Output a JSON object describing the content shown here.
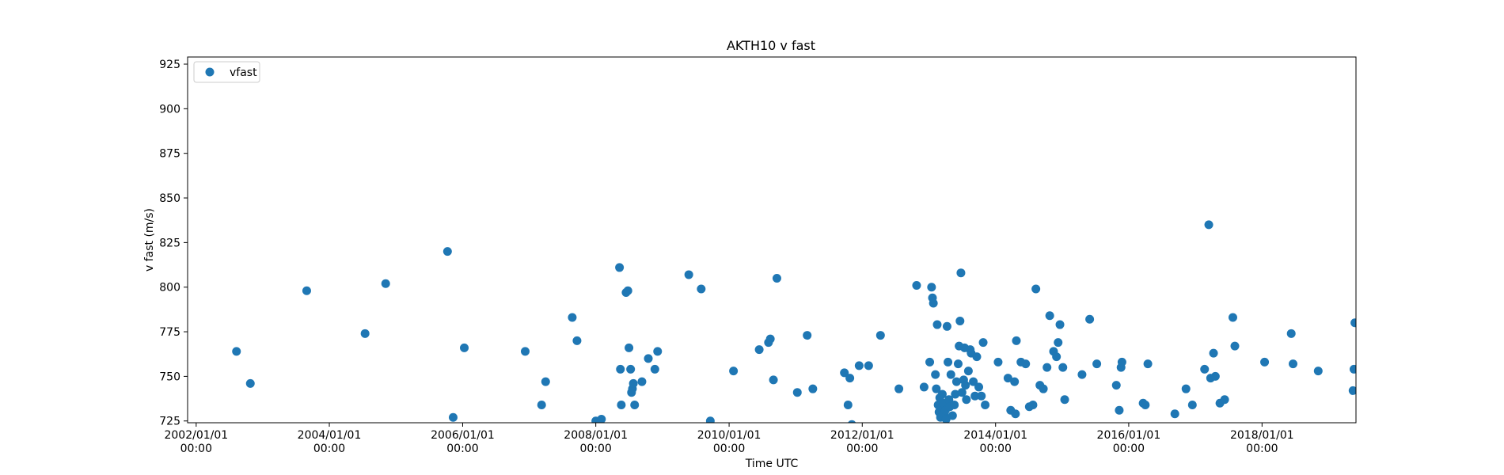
{
  "chart_data": {
    "type": "scatter",
    "title": "AKTH10 v fast",
    "xlabel": "Time UTC",
    "ylabel": "v fast (m/s)",
    "grid": false,
    "legend_position": "top-left",
    "xlim": [
      "2001-11-15",
      "2019-05-31"
    ],
    "ylim": [
      724,
      929
    ],
    "x_ticks": [
      {
        "date": "2002-01-01",
        "line1": "2002/01/01",
        "line2": "00:00"
      },
      {
        "date": "2004-01-01",
        "line1": "2004/01/01",
        "line2": "00:00"
      },
      {
        "date": "2006-01-01",
        "line1": "2006/01/01",
        "line2": "00:00"
      },
      {
        "date": "2008-01-01",
        "line1": "2008/01/01",
        "line2": "00:00"
      },
      {
        "date": "2010-01-01",
        "line1": "2010/01/01",
        "line2": "00:00"
      },
      {
        "date": "2012-01-01",
        "line1": "2012/01/01",
        "line2": "00:00"
      },
      {
        "date": "2014-01-01",
        "line1": "2014/01/01",
        "line2": "00:00"
      },
      {
        "date": "2016-01-01",
        "line1": "2016/01/01",
        "line2": "00:00"
      },
      {
        "date": "2018-01-01",
        "line1": "2018/01/01",
        "line2": "00:00"
      }
    ],
    "y_ticks": [
      725,
      750,
      775,
      800,
      825,
      850,
      875,
      900,
      925
    ],
    "series": [
      {
        "name": "vfast",
        "color": "#1f77b4",
        "marker": "circle",
        "points": [
          {
            "x": "2002-08-10",
            "y": 764
          },
          {
            "x": "2002-10-25",
            "y": 746
          },
          {
            "x": "2003-08-30",
            "y": 798
          },
          {
            "x": "2004-07-15",
            "y": 774
          },
          {
            "x": "2004-11-05",
            "y": 802
          },
          {
            "x": "2005-10-10",
            "y": 820
          },
          {
            "x": "2005-11-10",
            "y": 727
          },
          {
            "x": "2006-01-10",
            "y": 766
          },
          {
            "x": "2006-12-10",
            "y": 764
          },
          {
            "x": "2007-03-10",
            "y": 734
          },
          {
            "x": "2007-04-01",
            "y": 747
          },
          {
            "x": "2007-08-25",
            "y": 783
          },
          {
            "x": "2007-09-20",
            "y": 770
          },
          {
            "x": "2008-01-01",
            "y": 725
          },
          {
            "x": "2008-02-01",
            "y": 726
          },
          {
            "x": "2008-05-10",
            "y": 811
          },
          {
            "x": "2008-05-15",
            "y": 754
          },
          {
            "x": "2008-05-20",
            "y": 734
          },
          {
            "x": "2008-06-15",
            "y": 797
          },
          {
            "x": "2008-06-25",
            "y": 798
          },
          {
            "x": "2008-07-01",
            "y": 766
          },
          {
            "x": "2008-07-10",
            "y": 754
          },
          {
            "x": "2008-07-15",
            "y": 741
          },
          {
            "x": "2008-07-20",
            "y": 743
          },
          {
            "x": "2008-07-25",
            "y": 746
          },
          {
            "x": "2008-08-01",
            "y": 734
          },
          {
            "x": "2008-09-10",
            "y": 747
          },
          {
            "x": "2008-10-15",
            "y": 760
          },
          {
            "x": "2008-11-20",
            "y": 754
          },
          {
            "x": "2008-12-05",
            "y": 764
          },
          {
            "x": "2009-05-25",
            "y": 807
          },
          {
            "x": "2009-08-01",
            "y": 799
          },
          {
            "x": "2009-09-20",
            "y": 725
          },
          {
            "x": "2010-01-25",
            "y": 753
          },
          {
            "x": "2010-06-15",
            "y": 765
          },
          {
            "x": "2010-08-05",
            "y": 769
          },
          {
            "x": "2010-08-15",
            "y": 771
          },
          {
            "x": "2010-09-01",
            "y": 748
          },
          {
            "x": "2010-09-20",
            "y": 805
          },
          {
            "x": "2011-01-10",
            "y": 741
          },
          {
            "x": "2011-03-05",
            "y": 773
          },
          {
            "x": "2011-04-05",
            "y": 743
          },
          {
            "x": "2011-09-25",
            "y": 752
          },
          {
            "x": "2011-10-15",
            "y": 734
          },
          {
            "x": "2011-10-25",
            "y": 749
          },
          {
            "x": "2011-11-05",
            "y": 723
          },
          {
            "x": "2011-12-15",
            "y": 756
          },
          {
            "x": "2012-02-05",
            "y": 756
          },
          {
            "x": "2012-04-10",
            "y": 773
          },
          {
            "x": "2012-07-20",
            "y": 743
          },
          {
            "x": "2012-10-25",
            "y": 801
          },
          {
            "x": "2012-12-05",
            "y": 744
          },
          {
            "x": "2013-01-05",
            "y": 758
          },
          {
            "x": "2013-01-15",
            "y": 800
          },
          {
            "x": "2013-01-20",
            "y": 794
          },
          {
            "x": "2013-01-25",
            "y": 791
          },
          {
            "x": "2013-02-05",
            "y": 751
          },
          {
            "x": "2013-02-10",
            "y": 743
          },
          {
            "x": "2013-02-15",
            "y": 779
          },
          {
            "x": "2013-02-20",
            "y": 734
          },
          {
            "x": "2013-02-25",
            "y": 730
          },
          {
            "x": "2013-03-01",
            "y": 738
          },
          {
            "x": "2013-03-05",
            "y": 727
          },
          {
            "x": "2013-03-10",
            "y": 732
          },
          {
            "x": "2013-03-15",
            "y": 740
          },
          {
            "x": "2013-03-20",
            "y": 735
          },
          {
            "x": "2013-03-25",
            "y": 729
          },
          {
            "x": "2013-04-01",
            "y": 731
          },
          {
            "x": "2013-04-05",
            "y": 726
          },
          {
            "x": "2013-04-10",
            "y": 778
          },
          {
            "x": "2013-04-15",
            "y": 758
          },
          {
            "x": "2013-04-20",
            "y": 737
          },
          {
            "x": "2013-04-25",
            "y": 733
          },
          {
            "x": "2013-05-01",
            "y": 751
          },
          {
            "x": "2013-05-10",
            "y": 728
          },
          {
            "x": "2013-05-20",
            "y": 734
          },
          {
            "x": "2013-05-25",
            "y": 740
          },
          {
            "x": "2013-06-01",
            "y": 747
          },
          {
            "x": "2013-06-10",
            "y": 757
          },
          {
            "x": "2013-06-15",
            "y": 767
          },
          {
            "x": "2013-06-20",
            "y": 781
          },
          {
            "x": "2013-06-25",
            "y": 808
          },
          {
            "x": "2013-07-01",
            "y": 741
          },
          {
            "x": "2013-07-10",
            "y": 748
          },
          {
            "x": "2013-07-15",
            "y": 766
          },
          {
            "x": "2013-07-20",
            "y": 745
          },
          {
            "x": "2013-07-25",
            "y": 737
          },
          {
            "x": "2013-08-05",
            "y": 753
          },
          {
            "x": "2013-08-15",
            "y": 765
          },
          {
            "x": "2013-08-20",
            "y": 763
          },
          {
            "x": "2013-09-01",
            "y": 747
          },
          {
            "x": "2013-09-10",
            "y": 739
          },
          {
            "x": "2013-09-20",
            "y": 761
          },
          {
            "x": "2013-10-01",
            "y": 744
          },
          {
            "x": "2013-10-15",
            "y": 739
          },
          {
            "x": "2013-10-25",
            "y": 769
          },
          {
            "x": "2013-11-05",
            "y": 734
          },
          {
            "x": "2014-01-15",
            "y": 758
          },
          {
            "x": "2014-03-10",
            "y": 749
          },
          {
            "x": "2014-03-25",
            "y": 731
          },
          {
            "x": "2014-04-15",
            "y": 747
          },
          {
            "x": "2014-04-20",
            "y": 729
          },
          {
            "x": "2014-04-25",
            "y": 770
          },
          {
            "x": "2014-05-20",
            "y": 758
          },
          {
            "x": "2014-06-15",
            "y": 757
          },
          {
            "x": "2014-07-05",
            "y": 733
          },
          {
            "x": "2014-07-25",
            "y": 734
          },
          {
            "x": "2014-08-10",
            "y": 799
          },
          {
            "x": "2014-09-01",
            "y": 745
          },
          {
            "x": "2014-09-20",
            "y": 743
          },
          {
            "x": "2014-10-10",
            "y": 755
          },
          {
            "x": "2014-10-25",
            "y": 784
          },
          {
            "x": "2014-11-15",
            "y": 764
          },
          {
            "x": "2014-12-01",
            "y": 761
          },
          {
            "x": "2014-12-10",
            "y": 769
          },
          {
            "x": "2014-12-20",
            "y": 779
          },
          {
            "x": "2015-01-05",
            "y": 755
          },
          {
            "x": "2015-01-15",
            "y": 737
          },
          {
            "x": "2015-04-20",
            "y": 751
          },
          {
            "x": "2015-06-01",
            "y": 782
          },
          {
            "x": "2015-07-10",
            "y": 757
          },
          {
            "x": "2015-10-25",
            "y": 745
          },
          {
            "x": "2015-11-10",
            "y": 731
          },
          {
            "x": "2015-11-20",
            "y": 755
          },
          {
            "x": "2015-11-25",
            "y": 758
          },
          {
            "x": "2016-03-20",
            "y": 735
          },
          {
            "x": "2016-04-01",
            "y": 734
          },
          {
            "x": "2016-04-15",
            "y": 757
          },
          {
            "x": "2016-09-10",
            "y": 729
          },
          {
            "x": "2016-11-10",
            "y": 743
          },
          {
            "x": "2016-12-15",
            "y": 734
          },
          {
            "x": "2017-02-20",
            "y": 754
          },
          {
            "x": "2017-03-15",
            "y": 835
          },
          {
            "x": "2017-03-25",
            "y": 749
          },
          {
            "x": "2017-04-10",
            "y": 763
          },
          {
            "x": "2017-04-20",
            "y": 750
          },
          {
            "x": "2017-05-15",
            "y": 735
          },
          {
            "x": "2017-06-10",
            "y": 737
          },
          {
            "x": "2017-07-25",
            "y": 783
          },
          {
            "x": "2017-08-05",
            "y": 767
          },
          {
            "x": "2018-01-15",
            "y": 758
          },
          {
            "x": "2018-06-10",
            "y": 774
          },
          {
            "x": "2018-06-20",
            "y": 757
          },
          {
            "x": "2018-11-05",
            "y": 753
          },
          {
            "x": "2019-05-15",
            "y": 742
          },
          {
            "x": "2019-05-20",
            "y": 754
          },
          {
            "x": "2019-05-25",
            "y": 780
          }
        ]
      }
    ]
  }
}
